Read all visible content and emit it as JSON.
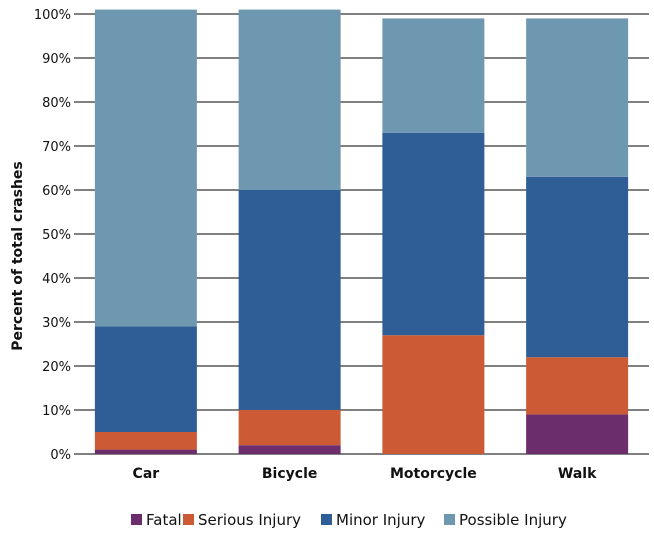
{
  "chart_data": {
    "type": "bar",
    "stacked": true,
    "ylabel": "Percent of total crashes",
    "xlabel": "",
    "ylim": [
      0,
      100
    ],
    "yticks": [
      "0%",
      "10%",
      "20%",
      "30%",
      "40%",
      "50%",
      "60%",
      "70%",
      "80%",
      "90%",
      "100%"
    ],
    "grid": "horizontal",
    "legend_position": "bottom",
    "categories": [
      "Car",
      "Bicycle",
      "Motorcycle",
      "Walk"
    ],
    "series": [
      {
        "name": "Fatal",
        "color": "#6b2d6b",
        "values": [
          1,
          2,
          0,
          9
        ]
      },
      {
        "name": "Serious Injury",
        "color": "#cc5a35",
        "values": [
          4,
          8,
          27,
          13
        ]
      },
      {
        "name": "Minor Injury",
        "color": "#2f5d95",
        "values": [
          24,
          50,
          46,
          41
        ]
      },
      {
        "name": "Possible Injury",
        "color": "#6e97b0",
        "values": [
          72,
          41,
          26,
          36
        ]
      }
    ]
  }
}
